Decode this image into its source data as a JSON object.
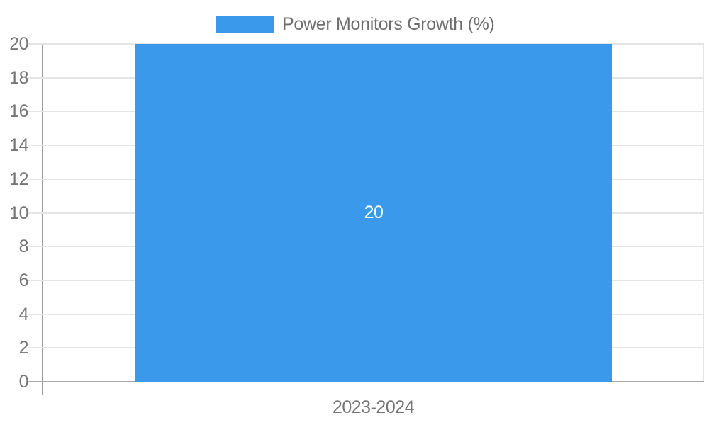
{
  "chart_data": {
    "type": "bar",
    "title": "",
    "categories": [
      "2023-2024"
    ],
    "series": [
      {
        "name": "Power Monitors Growth (%)",
        "values": [
          20
        ]
      }
    ],
    "value_labels": [
      "20"
    ],
    "xlabel": "",
    "ylabel": "",
    "ylim": [
      0,
      20
    ],
    "ytick_step": 2,
    "ytick_labels": [
      "0",
      "2",
      "4",
      "6",
      "8",
      "10",
      "12",
      "14",
      "16",
      "18",
      "20"
    ],
    "grid": true,
    "legend_position": "top-center",
    "bar_width_fraction": 0.72,
    "colors": {
      "bar": "#3b99ec",
      "gridline": "#e5e5e5",
      "baseline": "#a8a8a8",
      "axis_line": "#9b9b9b",
      "tick_text": "#757575",
      "legend_text": "#6e6e6e",
      "value_text": "#ffffff",
      "background": "#ffffff"
    }
  },
  "legend": {
    "label": "Power Monitors Growth (%)"
  }
}
